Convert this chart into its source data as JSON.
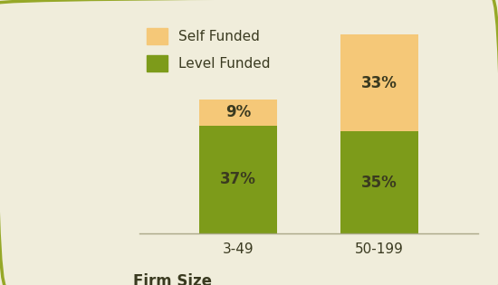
{
  "categories": [
    "3-49",
    "50-199"
  ],
  "level_funded": [
    37,
    35
  ],
  "self_funded": [
    9,
    33
  ],
  "level_funded_color": "#7d9b1a",
  "self_funded_color": "#f5c878",
  "background_color": "#f0eddb",
  "border_color": "#96a828",
  "text_color": "#3a3a20",
  "xlabel": "Firm Size",
  "legend_labels": [
    "Self Funded",
    "Level Funded"
  ],
  "bar_width": 0.55,
  "ylim": [
    0,
    75
  ],
  "label_fontsize": 12,
  "tick_fontsize": 11,
  "legend_fontsize": 11,
  "xlabel_fontsize": 12
}
